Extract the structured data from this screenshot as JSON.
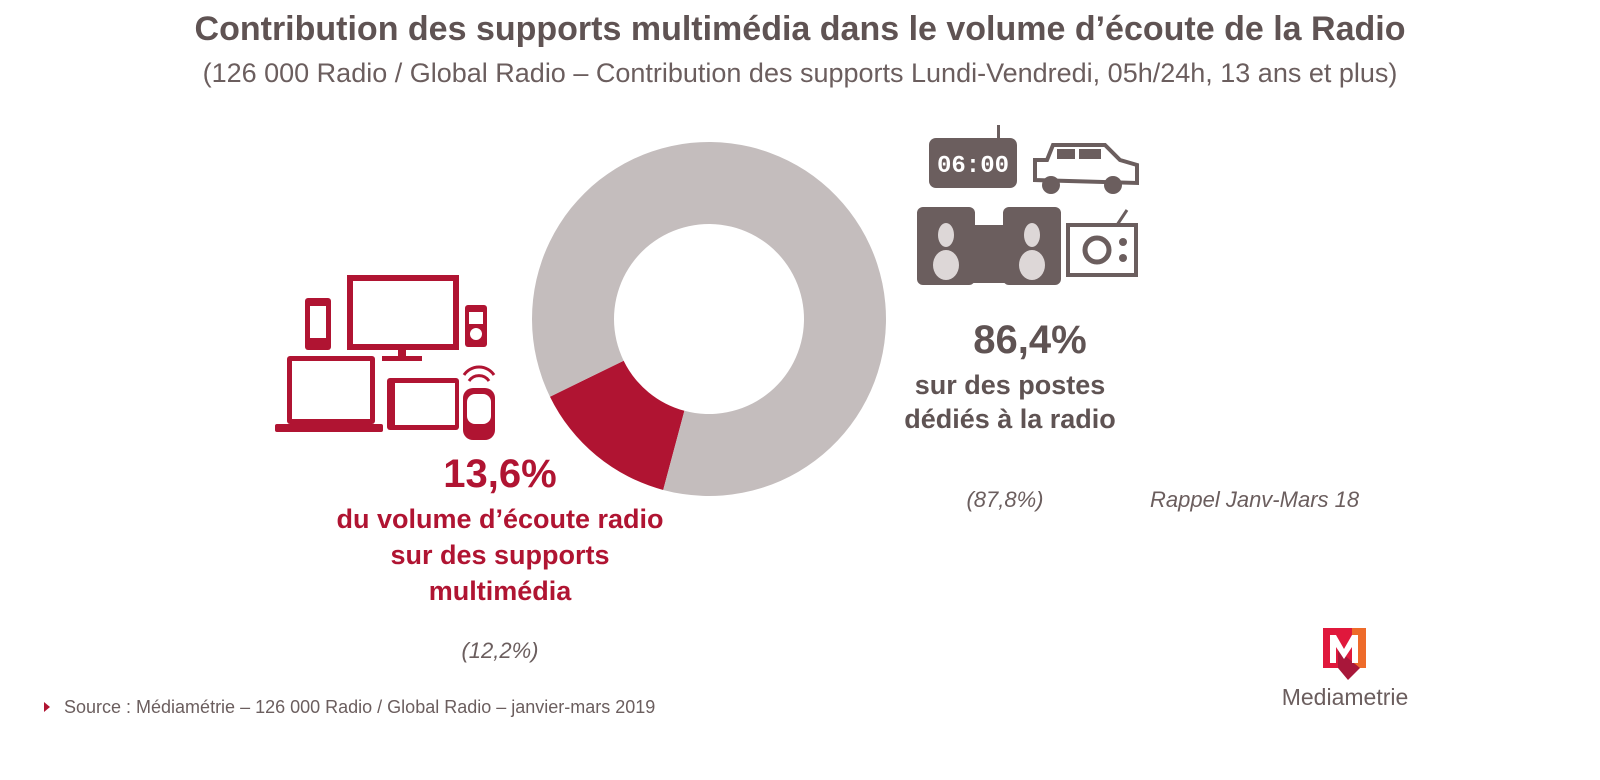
{
  "title": "Contribution des supports multimédia dans le volume d’écoute de la Radio",
  "subtitle": "(126 000 Radio / Global Radio – Contribution des supports Lundi-Vendredi, 05h/24h, 13 ans et plus)",
  "chart_data": {
    "type": "pie",
    "donut": true,
    "slices": [
      {
        "name": "supports multimédia",
        "value": 13.6,
        "color": "#b01432",
        "previous": 12.2
      },
      {
        "name": "postes dédiés à la radio",
        "value": 86.4,
        "color": "#c4bdbd",
        "previous": 87.8
      }
    ]
  },
  "multimedia": {
    "pct": "13,6%",
    "line1": "du volume d’écoute radio",
    "line2": "sur des supports",
    "line3": "multimédia",
    "previous": "(12,2%)"
  },
  "dedicated": {
    "pct": "86,4%",
    "line1": "sur des postes",
    "line2": "dédiés à la radio",
    "previous": "(87,8%)"
  },
  "clock_display": "06:00",
  "rappel": "Rappel Janv-Mars 18",
  "source": "Source : Médiamétrie – 126 000 Radio / Global Radio – janvier-mars 2019",
  "logo_text": "Mediametrie"
}
